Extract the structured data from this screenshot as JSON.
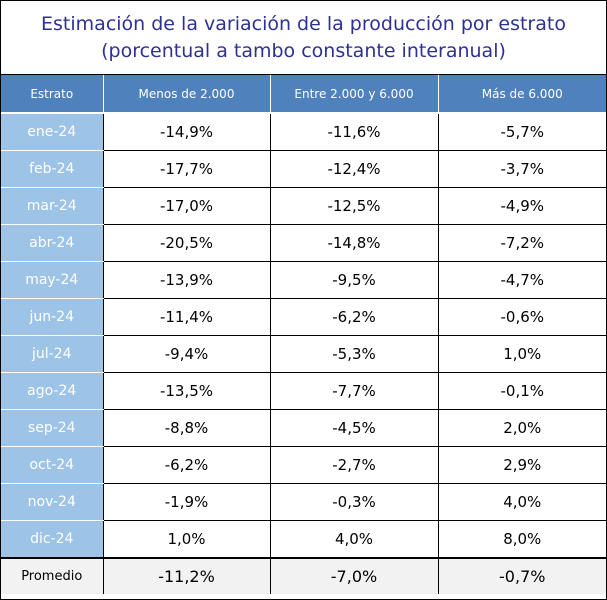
{
  "title": {
    "line1": "Estimación de la variación de la producción por estrato",
    "line2": "(porcentual a tambo constante interanual)"
  },
  "colors": {
    "title": "#2e3192",
    "header_bg": "#4f81bd",
    "month_bg": "#9dc3e6",
    "average_bg": "#f2f2f2"
  },
  "table": {
    "headers": [
      "Estrato",
      "Menos de 2.000",
      "Entre 2.000 y 6.000",
      "Más de 6.000"
    ],
    "rows": [
      [
        "ene-24",
        "-14,9%",
        "-11,6%",
        "-5,7%"
      ],
      [
        "feb-24",
        "-17,7%",
        "-12,4%",
        "-3,7%"
      ],
      [
        "mar-24",
        "-17,0%",
        "-12,5%",
        "-4,9%"
      ],
      [
        "abr-24",
        "-20,5%",
        "-14,8%",
        "-7,2%"
      ],
      [
        "may-24",
        "-13,9%",
        "-9,5%",
        "-4,7%"
      ],
      [
        "jun-24",
        "-11,4%",
        "-6,2%",
        "-0,6%"
      ],
      [
        "jul-24",
        "-9,4%",
        "-5,3%",
        "1,0%"
      ],
      [
        "ago-24",
        "-13,5%",
        "-7,7%",
        "-0,1%"
      ],
      [
        "sep-24",
        "-8,8%",
        "-4,5%",
        "2,0%"
      ],
      [
        "oct-24",
        "-6,2%",
        "-2,7%",
        "2,9%"
      ],
      [
        "nov-24",
        "-1,9%",
        "-0,3%",
        "4,0%"
      ],
      [
        "dic-24",
        "1,0%",
        "4,0%",
        "8,0%"
      ]
    ],
    "average": [
      "Promedio",
      "-11,2%",
      "-7,0%",
      "-0,7%"
    ]
  }
}
